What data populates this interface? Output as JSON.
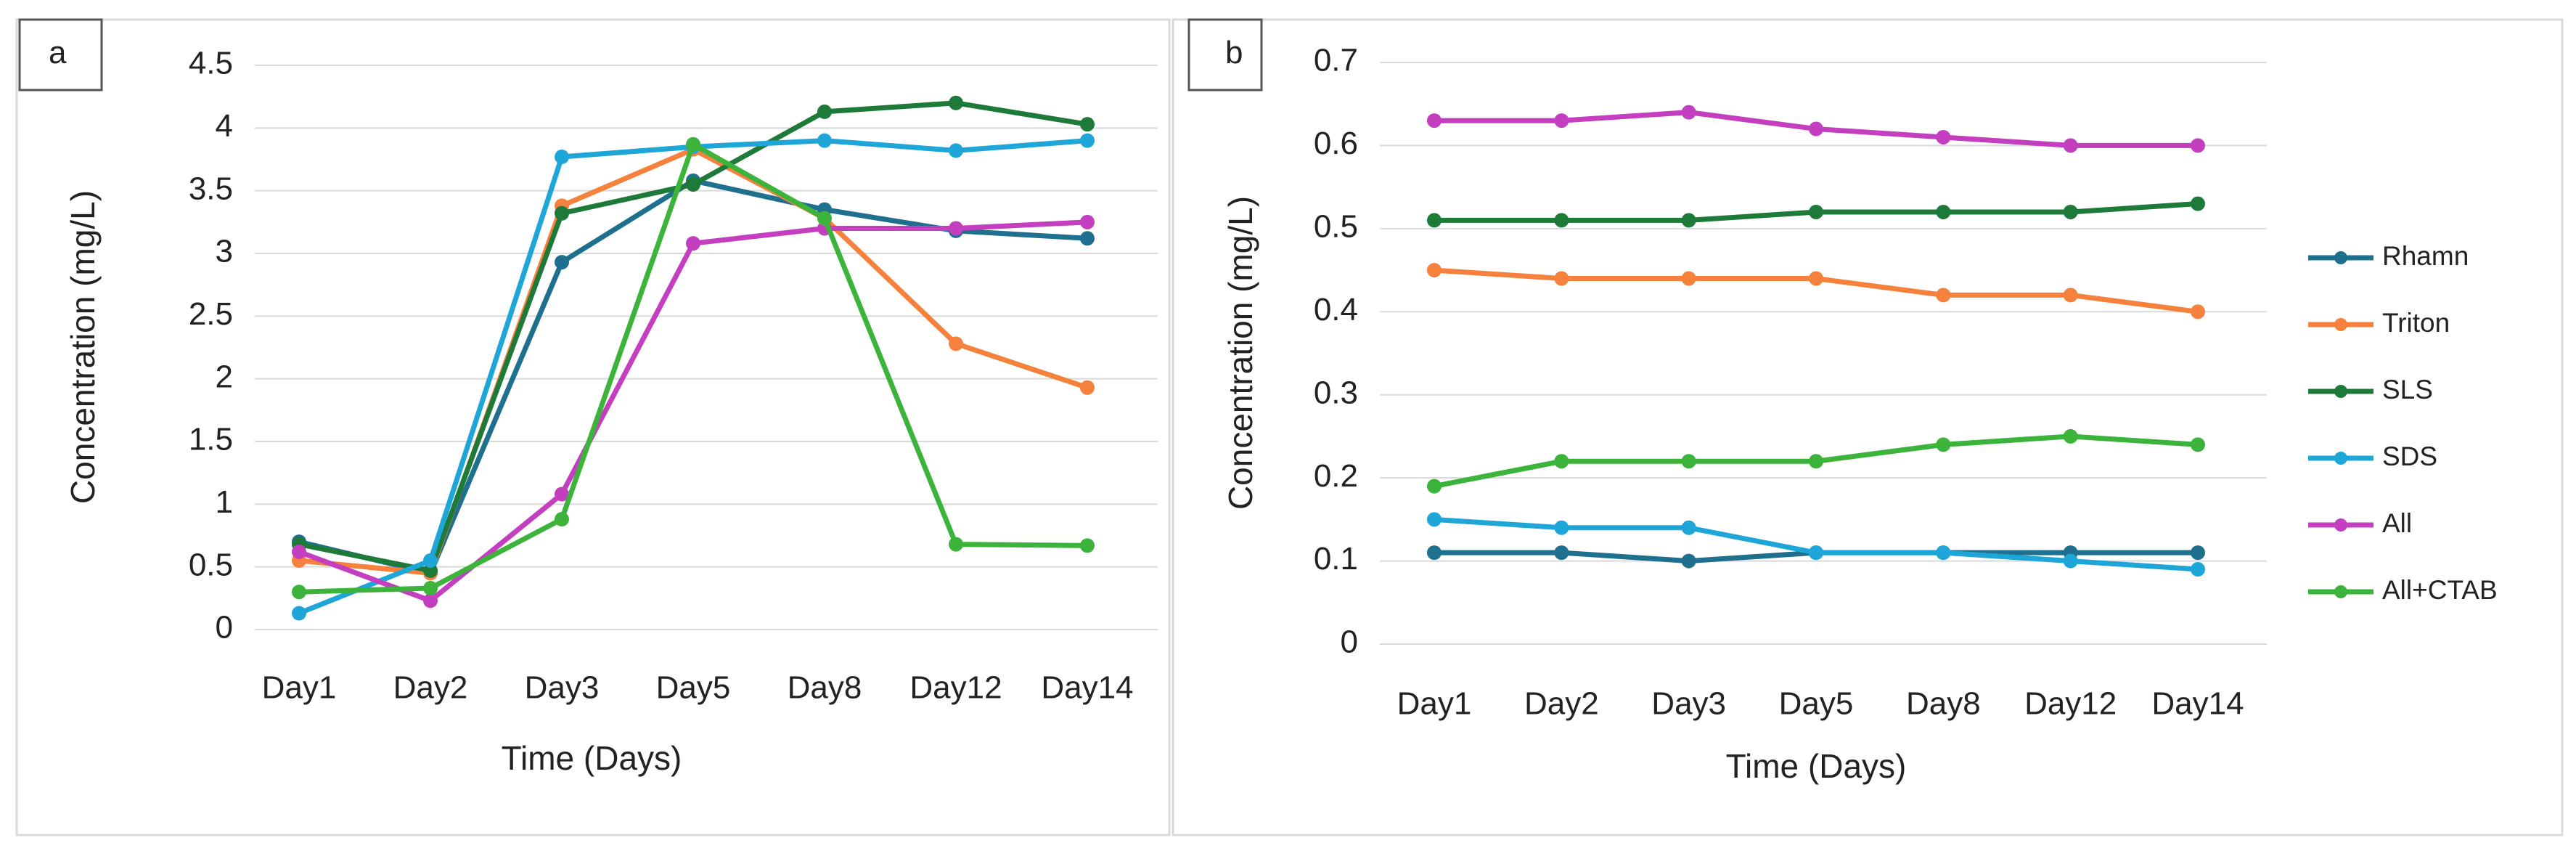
{
  "chart_data": [
    {
      "type": "line",
      "panel_label": "a",
      "x_label": "Time (Days)",
      "y_label": "Concentration  (mg/L)",
      "categories": [
        "Day1",
        "Day2",
        "Day3",
        "Day5",
        "Day8",
        "Day12",
        "Day14"
      ],
      "ylim": [
        0,
        4.5
      ],
      "yticks": [
        0,
        0.5,
        1,
        1.5,
        2,
        2.5,
        3,
        3.5,
        4,
        4.5
      ],
      "grid": true,
      "series": [
        {
          "name": "Rhamn",
          "color": "#1f6f8f",
          "values": [
            0.7,
            0.45,
            2.93,
            3.58,
            3.35,
            3.18,
            3.12
          ]
        },
        {
          "name": "Triton",
          "color": "#f5813d",
          "values": [
            0.55,
            0.45,
            3.38,
            3.83,
            3.28,
            2.28,
            1.93
          ]
        },
        {
          "name": "SLS",
          "color": "#1e7a38",
          "values": [
            0.68,
            0.47,
            3.32,
            3.55,
            4.13,
            4.2,
            4.03
          ]
        },
        {
          "name": "SDS",
          "color": "#1fa6d9",
          "values": [
            0.13,
            0.55,
            3.77,
            3.85,
            3.9,
            3.82,
            3.9
          ]
        },
        {
          "name": "All",
          "color": "#c43ec0",
          "values": [
            0.62,
            0.23,
            1.08,
            3.08,
            3.2,
            3.2,
            3.25
          ]
        },
        {
          "name": "All+CTAB",
          "color": "#3cb43c",
          "values": [
            0.3,
            0.33,
            0.88,
            3.87,
            3.28,
            0.68,
            0.67
          ]
        }
      ]
    },
    {
      "type": "line",
      "panel_label": "b",
      "x_label": "Time (Days)",
      "y_label": "Concentration (mg/L)",
      "categories": [
        "Day1",
        "Day2",
        "Day3",
        "Day5",
        "Day8",
        "Day12",
        "Day14"
      ],
      "ylim": [
        0,
        0.7
      ],
      "yticks": [
        0,
        0.1,
        0.2,
        0.3,
        0.4,
        0.5,
        0.6,
        0.7
      ],
      "grid": true,
      "legend": "right",
      "series": [
        {
          "name": "Rhamn",
          "color": "#1f6f8f",
          "values": [
            0.11,
            0.11,
            0.1,
            0.11,
            0.11,
            0.11,
            0.11
          ]
        },
        {
          "name": "Triton",
          "color": "#f5813d",
          "values": [
            0.45,
            0.44,
            0.44,
            0.44,
            0.42,
            0.42,
            0.4
          ]
        },
        {
          "name": "SLS",
          "color": "#1e7a38",
          "values": [
            0.51,
            0.51,
            0.51,
            0.52,
            0.52,
            0.52,
            0.53
          ]
        },
        {
          "name": "SDS",
          "color": "#1fa6d9",
          "values": [
            0.15,
            0.14,
            0.14,
            0.11,
            0.11,
            0.1,
            0.09
          ]
        },
        {
          "name": "All",
          "color": "#c43ec0",
          "values": [
            0.63,
            0.63,
            0.64,
            0.62,
            0.61,
            0.6,
            0.6
          ]
        },
        {
          "name": "All+CTAB",
          "color": "#3cb43c",
          "values": [
            0.19,
            0.22,
            0.22,
            0.22,
            0.24,
            0.25,
            0.24
          ]
        }
      ]
    }
  ]
}
